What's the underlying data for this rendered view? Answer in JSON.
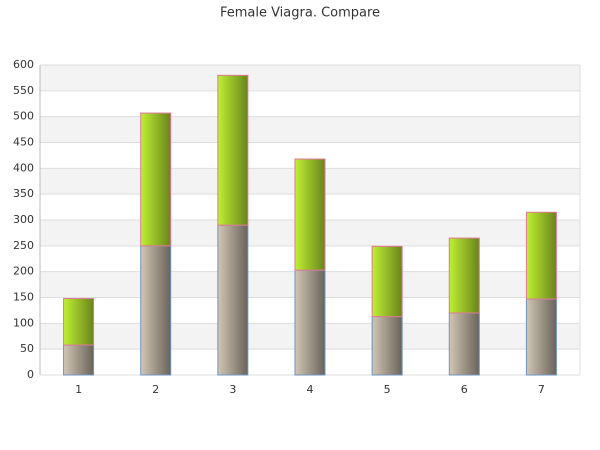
{
  "chart_data": {
    "type": "stacked-bar",
    "title": "Female Viagra. Compare",
    "categories": [
      "1",
      "2",
      "3",
      "4",
      "5",
      "6",
      "7"
    ],
    "series": [
      {
        "color": "#d2c6b4",
        "values": [
          58,
          250,
          290,
          203,
          113,
          120,
          147
        ]
      },
      {
        "color": "#bff032",
        "values": [
          90,
          257,
          290,
          215,
          136,
          145,
          168
        ]
      }
    ],
    "ylim": [
      0,
      600
    ],
    "yticks": [
      0,
      50,
      100,
      150,
      200,
      250,
      300,
      350,
      400,
      450,
      500,
      550,
      600
    ],
    "grid": true
  }
}
